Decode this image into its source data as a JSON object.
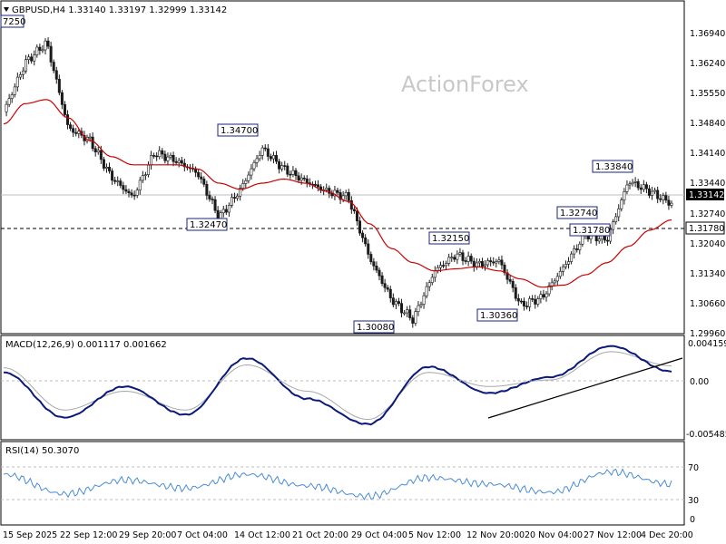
{
  "header": {
    "symbol_info": "GBPUSD,H4  1.33140 1.33197 1.32999 1.33142"
  },
  "watermark": "ActionForex",
  "colors": {
    "price_line": "#1a1a1a",
    "ma_line": "#cc0000",
    "macd_line": "#0b1a7a",
    "signal_line": "#a8a8a8",
    "rsi_line": "#4a8cd8",
    "label_border": "#1a237e",
    "grid": "#bdbdbd"
  },
  "price_panel": {
    "y_ticks": [
      "1.36940",
      "1.36240",
      "1.35550",
      "1.34840",
      "1.34140",
      "1.33440",
      "1.32740",
      "1.32040",
      "1.31340",
      "1.30660",
      "1.29960"
    ],
    "current_price": "1.33142",
    "support_level": "1.31780",
    "annotations": [
      {
        "text": "7250",
        "side": "left"
      },
      {
        "text": "1.34700"
      },
      {
        "text": "1.32470"
      },
      {
        "text": "1.32150"
      },
      {
        "text": "1.30080"
      },
      {
        "text": "1.30360"
      },
      {
        "text": "1.33840"
      },
      {
        "text": "1.32740"
      },
      {
        "text": "1.31780"
      }
    ]
  },
  "macd_panel": {
    "title": "MACD(12,26,9) 0.001117 0.001662",
    "y_ticks": [
      "0.004159",
      "0.00",
      "-0.005485"
    ]
  },
  "rsi_panel": {
    "title": "RSI(14) 50.3070",
    "y_ticks": [
      "70",
      "30",
      "0"
    ]
  },
  "x_axis": {
    "labels": [
      "15 Sep 2025",
      "22 Sep 12:00",
      "29 Sep 20:00",
      "7 Oct 04:00",
      "14 Oct 12:00",
      "21 Oct 20:00",
      "29 Oct 04:00",
      "5 Nov 12:00",
      "12 Nov 20:00",
      "20 Nov 04:00",
      "27 Nov 12:00",
      "4 Dec 20:00"
    ]
  },
  "chart_data": [
    {
      "type": "line",
      "title": "GBPUSD,H4",
      "ylim": [
        1.2996,
        1.3734
      ],
      "x": [
        "15 Sep 2025",
        "17 Sep",
        "18 Sep",
        "19 Sep",
        "22 Sep 12:00",
        "24 Sep",
        "26 Sep",
        "29 Sep 20:00",
        "1 Oct",
        "3 Oct",
        "7 Oct 04:00",
        "9 Oct",
        "14 Oct 12:00",
        "16 Oct",
        "18 Oct",
        "21 Oct 20:00",
        "24 Oct",
        "29 Oct 04:00",
        "31 Oct",
        "5 Nov 12:00",
        "7 Nov",
        "12 Nov 20:00",
        "14 Nov",
        "17 Nov",
        "20 Nov 04:00",
        "23 Nov",
        "25 Nov",
        "27 Nov 12:00",
        "30 Nov",
        "2 Dec",
        "4 Dec 20:00",
        "6 Dec"
      ],
      "series": [
        {
          "name": "price",
          "values": [
            1.354,
            1.366,
            1.371,
            1.35,
            1.347,
            1.338,
            1.333,
            1.344,
            1.342,
            1.339,
            1.328,
            1.335,
            1.345,
            1.34,
            1.337,
            1.3345,
            1.333,
            1.318,
            1.308,
            1.303,
            1.315,
            1.319,
            1.3165,
            1.3175,
            1.3065,
            1.3085,
            1.316,
            1.324,
            1.3225,
            1.337,
            1.3345,
            1.3314
          ]
        },
        {
          "name": "MA",
          "values": [
            1.351,
            1.356,
            1.357,
            1.3525,
            1.347,
            1.343,
            1.341,
            1.341,
            1.341,
            1.34,
            1.3365,
            1.335,
            1.3365,
            1.3375,
            1.3365,
            1.3345,
            1.332,
            1.3265,
            1.3205,
            1.317,
            1.315,
            1.3155,
            1.316,
            1.315,
            1.313,
            1.311,
            1.3115,
            1.314,
            1.317,
            1.321,
            1.325,
            1.3275
          ]
        }
      ]
    },
    {
      "type": "line",
      "title": "MACD(12,26,9)",
      "ylim": [
        -0.005485,
        0.004159
      ],
      "x": [
        "15 Sep 2025",
        "22 Sep 12:00",
        "29 Sep 20:00",
        "7 Oct 04:00",
        "14 Oct 12:00",
        "21 Oct 20:00",
        "29 Oct 04:00",
        "5 Nov 12:00",
        "12 Nov 20:00",
        "20 Nov 04:00",
        "27 Nov 12:00",
        "4 Dec 20:00"
      ],
      "series": [
        {
          "name": "MACD",
          "values": [
            0.001,
            -0.0038,
            -0.0005,
            -0.0035,
            0.0025,
            -0.0018,
            -0.0045,
            0.0016,
            -0.0012,
            0.0005,
            0.0038,
            0.0011
          ]
        },
        {
          "name": "signal",
          "values": [
            0.0015,
            -0.003,
            -0.001,
            -0.003,
            0.0018,
            -0.001,
            -0.004,
            0.001,
            -0.0005,
            0.0002,
            0.0032,
            0.0017
          ]
        }
      ]
    },
    {
      "type": "line",
      "title": "RSI(14)",
      "ylim": [
        0,
        100
      ],
      "x": [
        "15 Sep 2025",
        "22 Sep 12:00",
        "29 Sep 20:00",
        "7 Oct 04:00",
        "14 Oct 12:00",
        "21 Oct 20:00",
        "29 Oct 04:00",
        "5 Nov 12:00",
        "12 Nov 20:00",
        "20 Nov 04:00",
        "27 Nov 12:00",
        "4 Dec 20:00"
      ],
      "series": [
        {
          "name": "RSI",
          "values": [
            62,
            38,
            55,
            45,
            62,
            48,
            35,
            58,
            50,
            40,
            65,
            50
          ]
        }
      ]
    }
  ]
}
